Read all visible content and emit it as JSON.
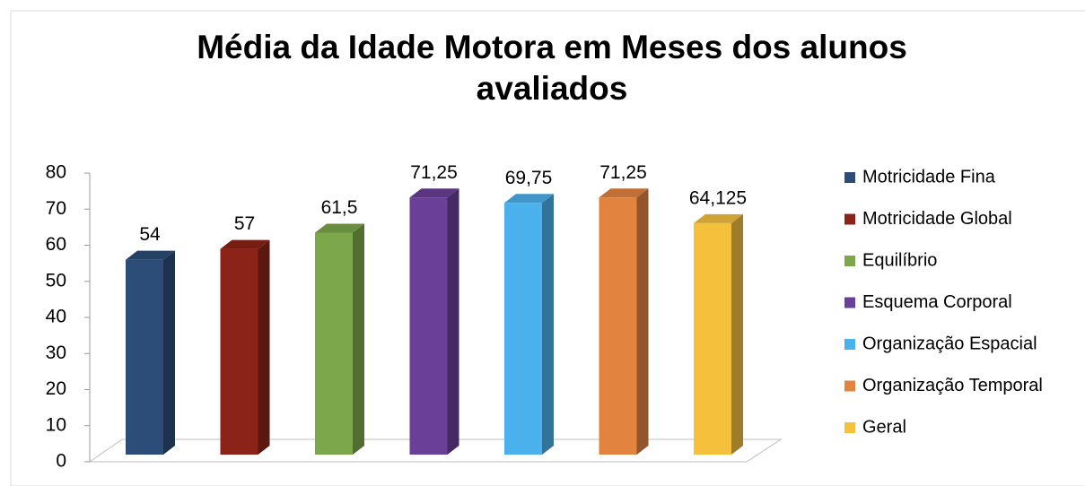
{
  "chart_data": {
    "type": "bar3d",
    "title": "Média da Idade Motora em Meses dos alunos avaliados",
    "series": [
      {
        "name": "Motricidade Fina",
        "color": "#2c4d78",
        "values": [
          54
        ]
      },
      {
        "name": "Motricidade Global",
        "color": "#8c2318",
        "values": [
          57
        ]
      },
      {
        "name": "Equilíbrio",
        "color": "#7ca74a",
        "values": [
          61.5
        ],
        "value_labels": [
          "61,5"
        ]
      },
      {
        "name": "Esquema Corporal",
        "color": "#6a3f98",
        "values": [
          71.25
        ],
        "value_labels": [
          "71,25"
        ]
      },
      {
        "name": "Organização Espacial",
        "color": "#4bb1ec",
        "values": [
          69.75
        ],
        "value_labels": [
          "69,75"
        ]
      },
      {
        "name": "Organização Temporal",
        "color": "#e2833f",
        "values": [
          71.25
        ],
        "value_labels": [
          "71,25"
        ]
      },
      {
        "name": "Geral",
        "color": "#f5c13d",
        "values": [
          64.125
        ],
        "value_labels": [
          "64,125"
        ]
      }
    ],
    "ylim": [
      0,
      80
    ],
    "yticks": [
      0,
      10,
      20,
      30,
      40,
      50,
      60,
      70,
      80
    ],
    "legend": "right"
  }
}
